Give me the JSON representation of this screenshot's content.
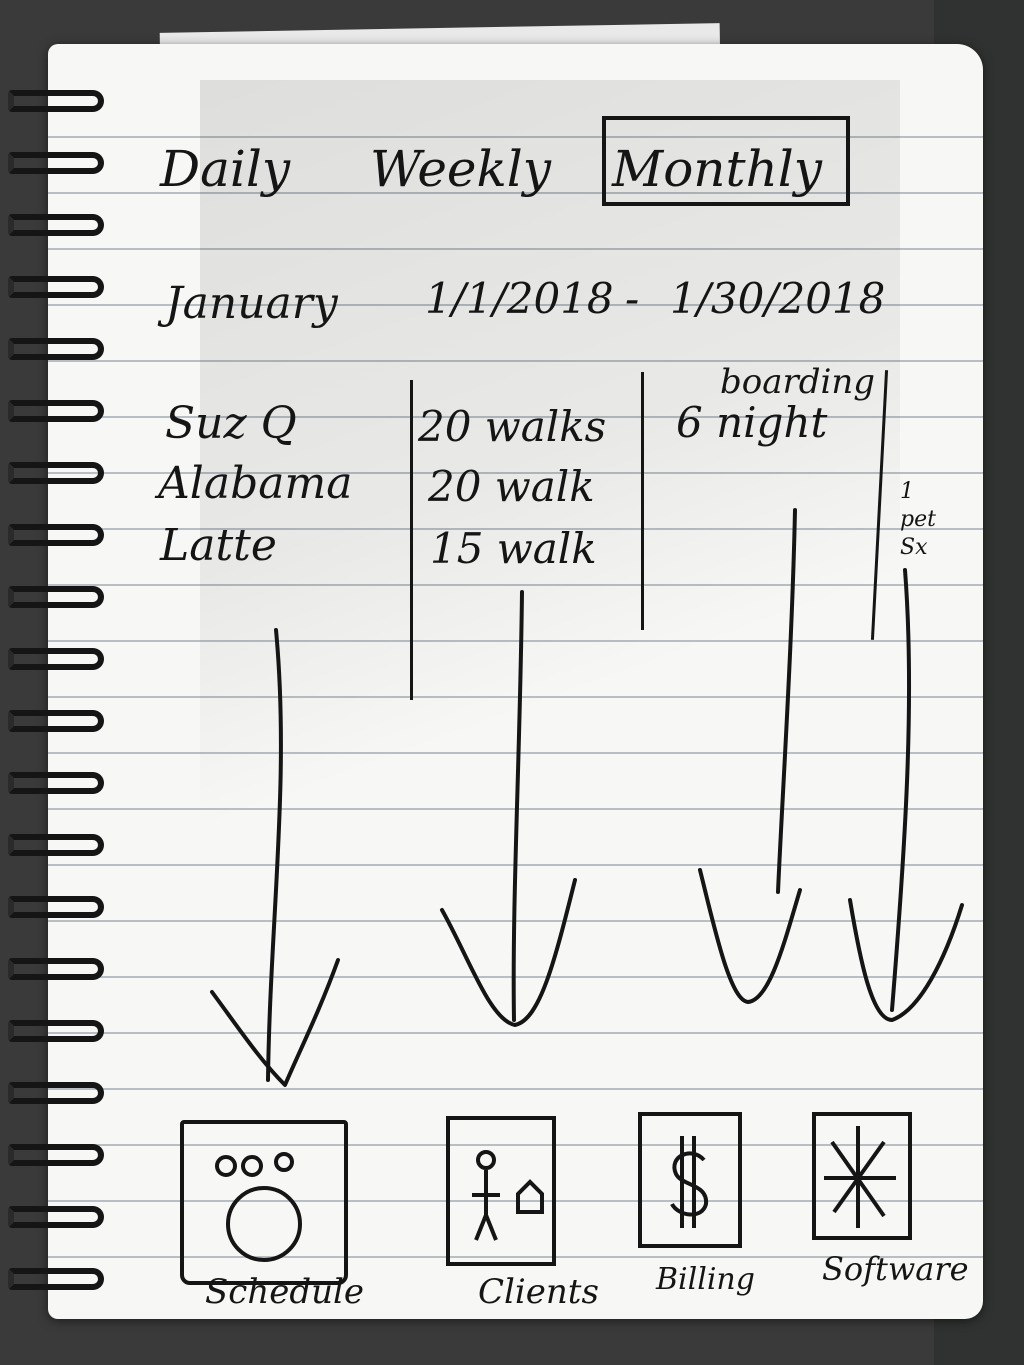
{
  "tabs": {
    "daily": "Daily",
    "weekly": "Weekly",
    "monthly": "Monthly",
    "selected": "Monthly"
  },
  "period": {
    "month": "January",
    "start": "1/1/2018",
    "separator": "-",
    "end": "1/30/2018"
  },
  "table": {
    "boarding_header": "boarding",
    "rows": [
      {
        "name": "Suz Q",
        "walks": "20 walks",
        "boarding": "6 night"
      },
      {
        "name": "Alabama",
        "walks": "20 walk",
        "boarding": ""
      },
      {
        "name": "Latte",
        "walks": "15 walk",
        "boarding": ""
      }
    ],
    "side_note": "1 pet Sx"
  },
  "nav": [
    {
      "label": "Schedule",
      "icon": "clock-icon"
    },
    {
      "label": "Clients",
      "icon": "person-house-icon"
    },
    {
      "label": "Billing",
      "icon": "dollar-icon"
    },
    {
      "label": "Software",
      "icon": "asterisk-icon"
    }
  ],
  "colors": {
    "ink": "#151515",
    "paper": "#f7f7f5",
    "rule": "#b9bec4"
  }
}
